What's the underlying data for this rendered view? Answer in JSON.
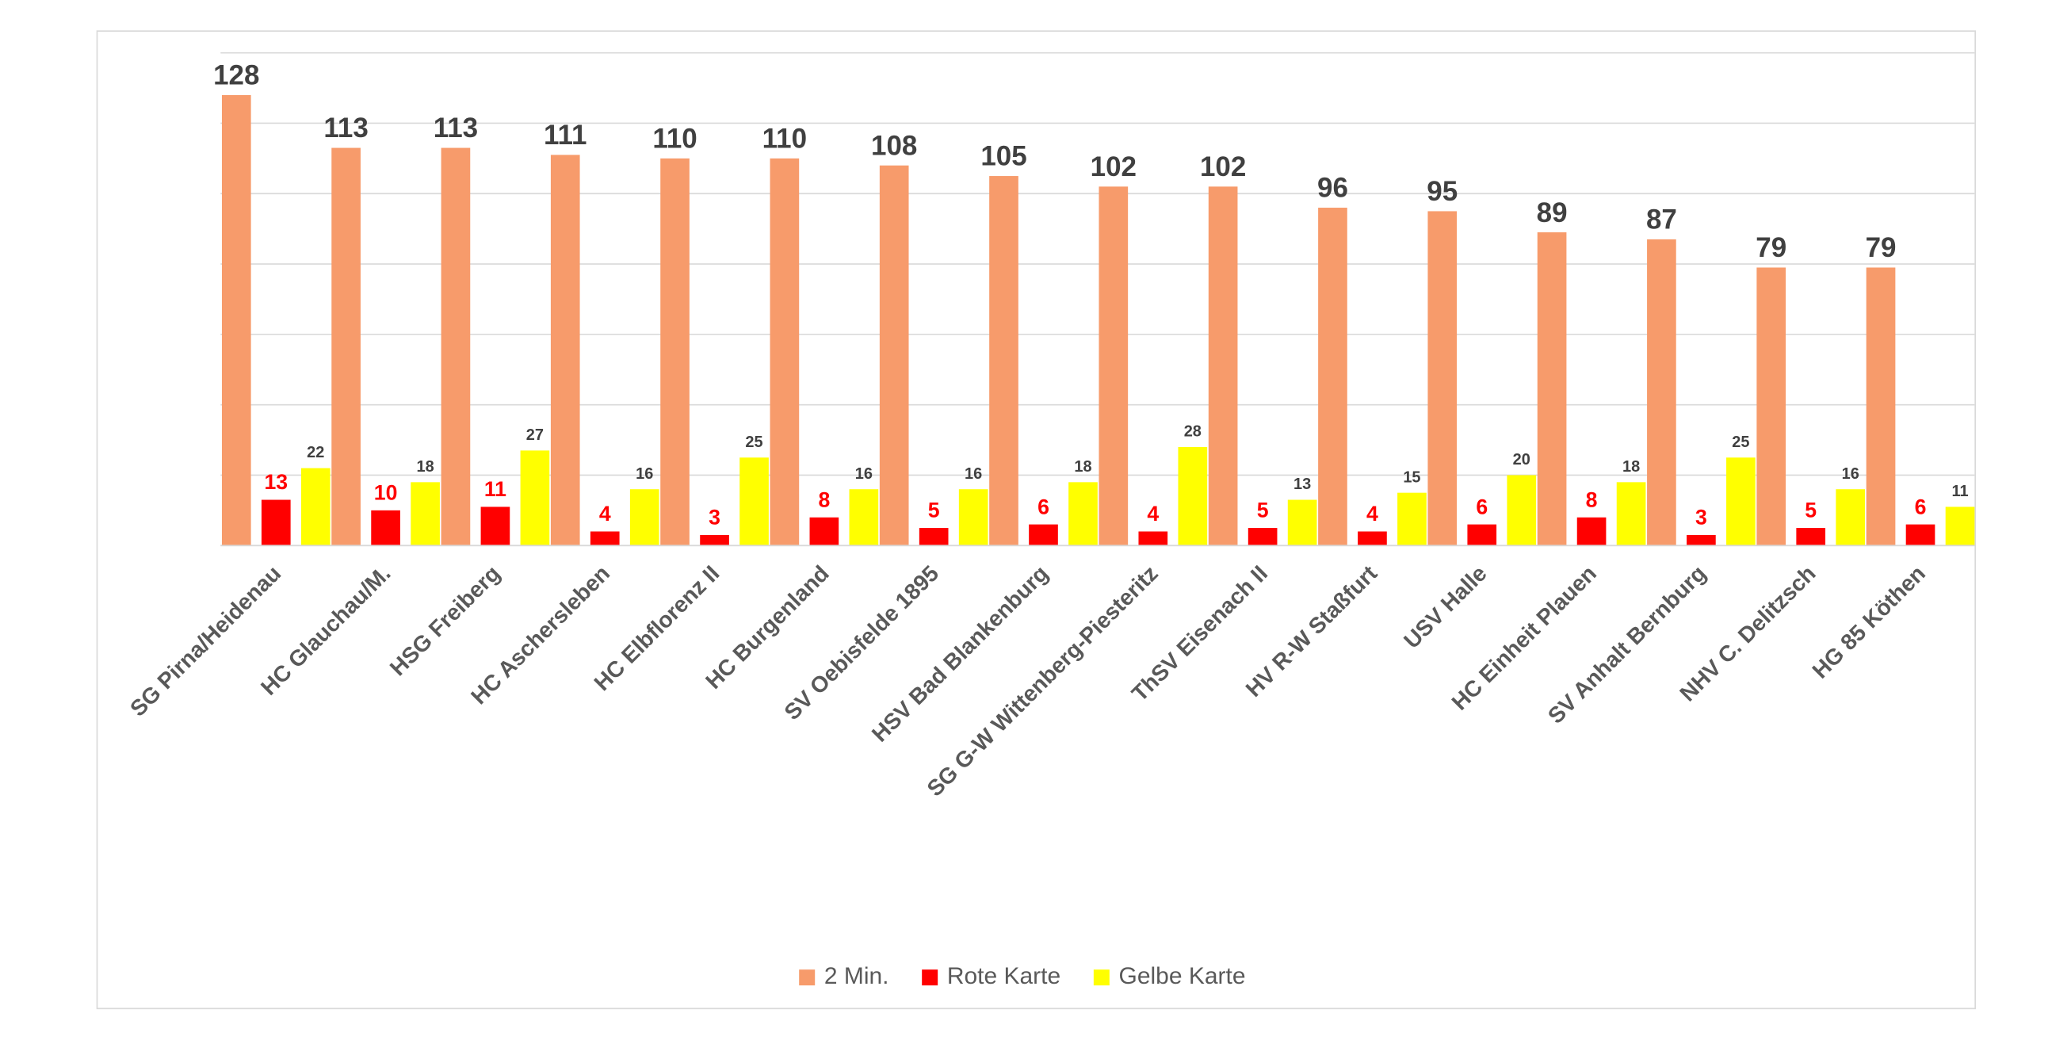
{
  "chart_data": {
    "type": "bar",
    "categories": [
      "SG Pirna/Heidenau",
      "HC Glauchau/M.",
      "HSG Freiberg",
      "HC Aschersleben",
      "HC Elbflorenz II",
      "HC Burgenland",
      "SV Oebisfelde 1895",
      "HSV Bad Blankenburg",
      "SG G-W Wittenberg-Piesteritz",
      "ThSV Eisenach II",
      "HV R-W Staßfurt",
      "USV Halle",
      "HC Einheit Plauen",
      "SV Anhalt Bernburg",
      "NHV C. Delitzsch",
      "HG 85 Köthen"
    ],
    "series": [
      {
        "name": "2 Min.",
        "color": "#F79B6B",
        "values": [
          128,
          113,
          113,
          111,
          110,
          110,
          108,
          105,
          102,
          102,
          96,
          95,
          89,
          87,
          79,
          79
        ]
      },
      {
        "name": "Rote Karte",
        "color": "#FF0000",
        "values": [
          13,
          10,
          11,
          4,
          3,
          8,
          5,
          6,
          4,
          5,
          4,
          6,
          8,
          3,
          5,
          6
        ]
      },
      {
        "name": "Gelbe Karte",
        "color": "#FFFF00",
        "values": [
          22,
          18,
          27,
          16,
          25,
          16,
          16,
          18,
          28,
          13,
          15,
          20,
          18,
          25,
          16,
          11
        ]
      }
    ],
    "ylim": [
      0,
      140
    ],
    "yticks": [
      0,
      20,
      40,
      60,
      80,
      100,
      120,
      140
    ],
    "grid": true,
    "legend": "bottom"
  }
}
